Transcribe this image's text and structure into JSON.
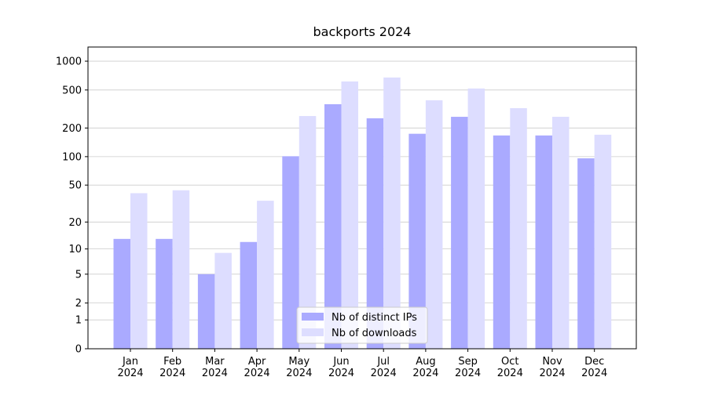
{
  "chart_data": {
    "type": "bar",
    "title": "backports 2024",
    "categories": [
      "Jan\n2024",
      "Feb\n2024",
      "Mar\n2024",
      "Apr\n2024",
      "May\n2024",
      "Jun\n2024",
      "Jul\n2024",
      "Aug\n2024",
      "Sep\n2024",
      "Oct\n2024",
      "Nov\n2024",
      "Dec\n2024"
    ],
    "series": [
      {
        "name": "Nb of distinct IPs",
        "color": "#aaaaff",
        "values": [
          13,
          13,
          5,
          12,
          101,
          355,
          253,
          174,
          262,
          167,
          167,
          96
        ]
      },
      {
        "name": "Nb of downloads",
        "color": "#ddddff",
        "values": [
          41,
          44,
          9,
          34,
          267,
          614,
          675,
          390,
          518,
          323,
          262,
          170
        ]
      }
    ],
    "yscale": "log1p",
    "ylim": [
      0,
      1405
    ],
    "yticks": [
      0,
      1,
      2,
      5,
      10,
      20,
      50,
      100,
      200,
      500,
      1000
    ],
    "grid": true,
    "legend": "lower center"
  }
}
